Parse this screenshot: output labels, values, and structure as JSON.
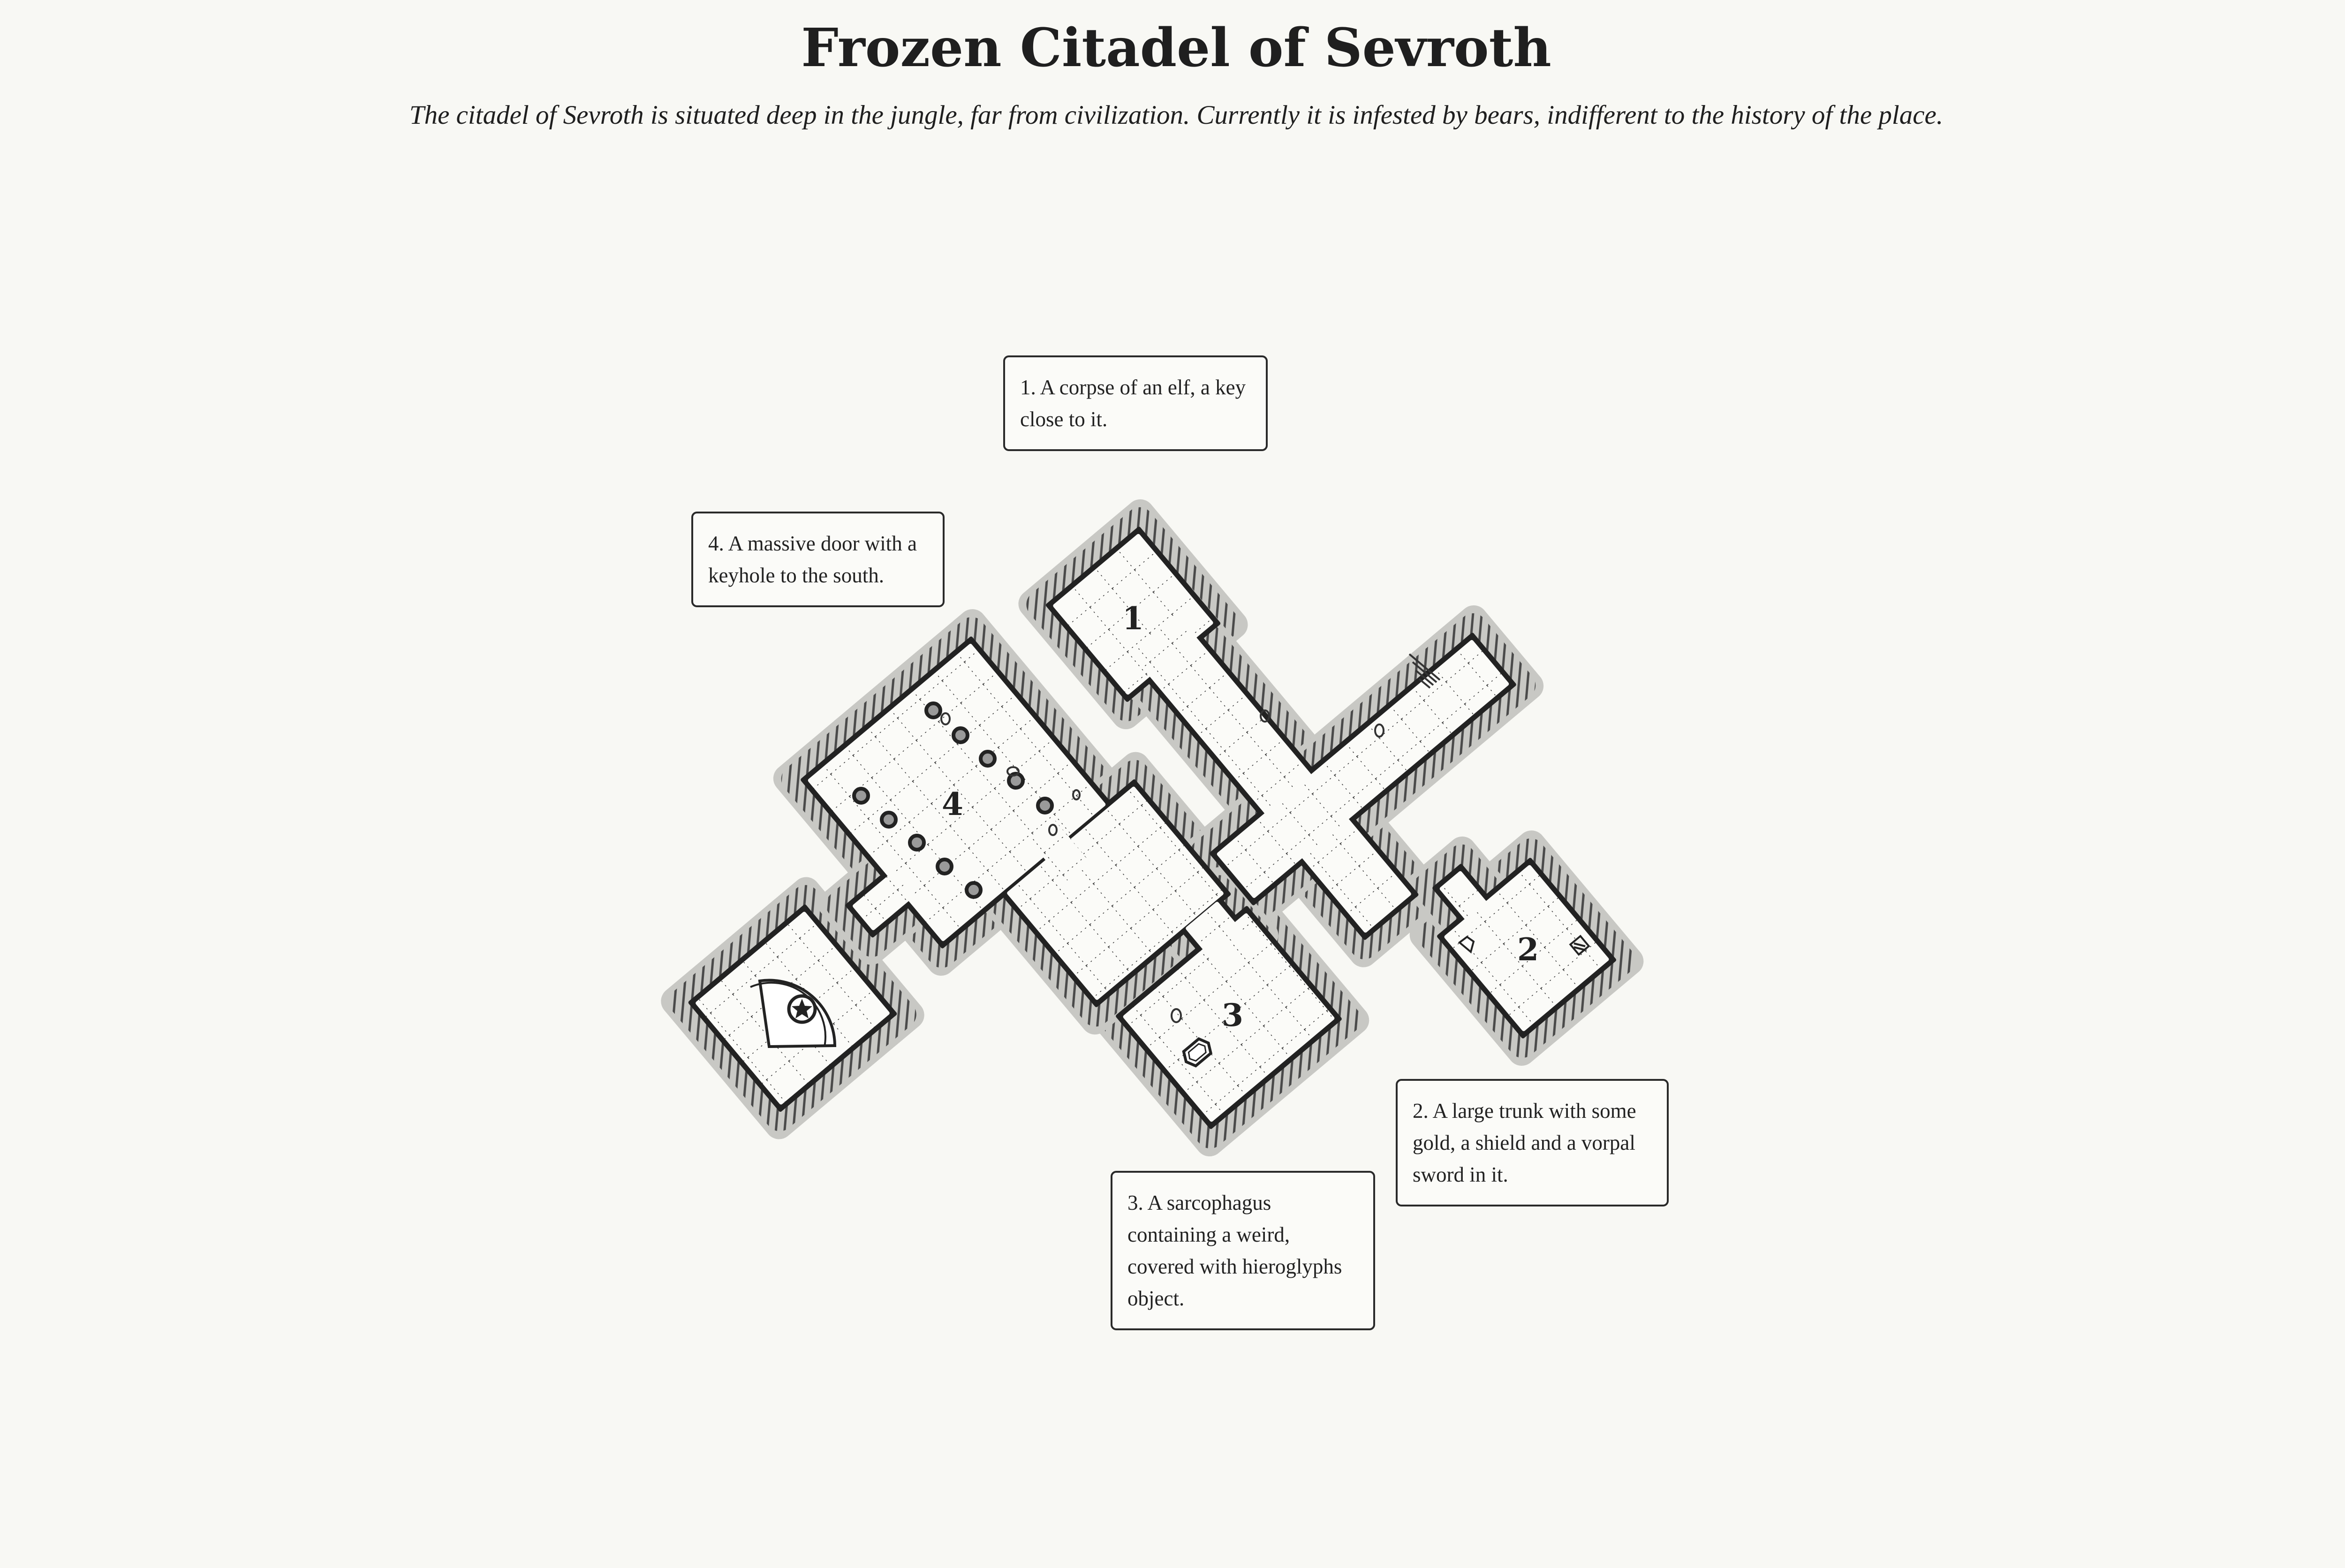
{
  "header": {
    "title": "Frozen Citadel of Sevroth",
    "subtitle": "The citadel of Sevroth is situated deep in the jungle, far from civilization. Currently it is infested by bears, indifferent to the history of the place."
  },
  "map": {
    "room_labels": [
      "1",
      "2",
      "3",
      "4"
    ],
    "colors": {
      "background": "#f8f8f4",
      "ink": "#222222",
      "floor": "#fbfbf8",
      "hatch": "#555555",
      "shadow": "#bcbcbc"
    }
  },
  "notes": [
    {
      "id": "1",
      "text": "1. A corpse of an elf, a key close to it."
    },
    {
      "id": "4",
      "text": "4. A massive door with a keyhole to the south."
    },
    {
      "id": "2",
      "text": "2. A large trunk with some gold, a shield and a vorpal sword in it."
    },
    {
      "id": "3",
      "text": "3. A sarcophagus containing a weird, covered with hieroglyphs object."
    }
  ]
}
